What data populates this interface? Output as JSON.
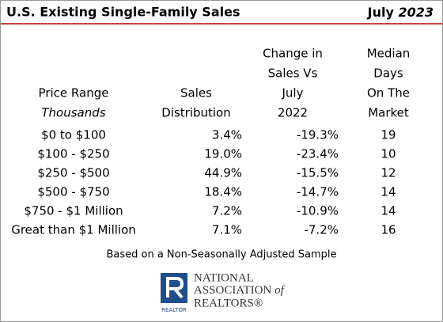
{
  "header": {
    "title": "U.S. Existing Single-Family Sales",
    "month": "July",
    "year": "2023"
  },
  "table": {
    "columns": [
      {
        "lines": [
          "Price Range"
        ],
        "italic_line": "Thousands"
      },
      {
        "lines": [
          "Sales",
          "Distribution"
        ]
      },
      {
        "lines": [
          "Change in",
          "Sales Vs",
          "July",
          "2022"
        ]
      },
      {
        "lines": [
          "Median",
          "Days",
          "On The",
          "Market"
        ]
      }
    ],
    "rows": [
      [
        "$0 to $100",
        "3.4%",
        "-19.3%",
        "19"
      ],
      [
        "$100 - $250",
        "19.0%",
        "-23.4%",
        "10"
      ],
      [
        "$250 - $500",
        "44.9%",
        "-15.5%",
        "12"
      ],
      [
        "$500 - $750",
        "18.4%",
        "-14.7%",
        "14"
      ],
      [
        "$750 - $1 Million",
        "7.2%",
        "-10.9%",
        "14"
      ],
      [
        "Great than $1 Million",
        "7.1%",
        "-7.2%",
        "16"
      ]
    ]
  },
  "footnote": "Based on a Non-Seasonally Adjusted Sample",
  "logo": {
    "line1": "NATIONAL",
    "line2": "ASSOCIATION",
    "line2_italic": "of",
    "line3": "REALTORS®",
    "badge": "REALTOR"
  }
}
